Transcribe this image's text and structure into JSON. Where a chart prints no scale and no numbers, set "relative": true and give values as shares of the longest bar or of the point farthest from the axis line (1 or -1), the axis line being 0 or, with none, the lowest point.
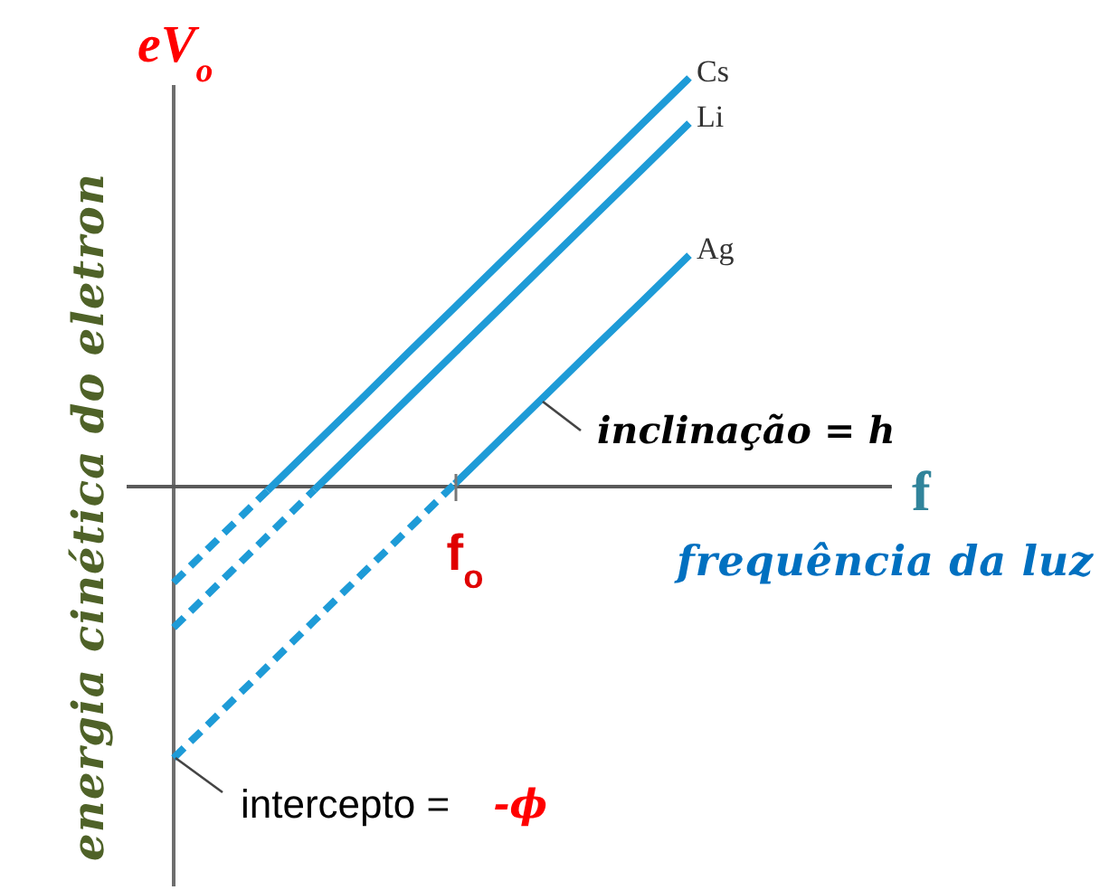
{
  "chart_data": {
    "type": "line",
    "relative": true,
    "xlabel": "frequência da luz",
    "ylabel": "energia cinética do eletron",
    "line_style": "solid",
    "categories": [
      null,
      null,
      null,
      null,
      null,
      null,
      null,
      null,
      null,
      null,
      null,
      null
    ],
    "series": [
      {
        "name": "Cs",
        "color": "#1e9bd7",
        "values": [
          null,
          null,
          -0.01,
          0.102,
          0.214,
          0.327,
          0.439,
          0.551,
          0.663,
          0.775,
          0.888,
          1
        ]
      },
      {
        "color": "#1e9bd7",
        "line_style": "dashed",
        "values": [
          -0.235,
          -0.122,
          -0.01,
          null,
          null,
          null,
          null,
          null,
          null,
          null,
          null,
          null
        ]
      },
      {
        "name": "Li",
        "color": "#1e9bd7",
        "values": [
          null,
          null,
          null,
          -0.008,
          0.104,
          0.216,
          0.328,
          0.44,
          0.553,
          0.665,
          0.777,
          0.889
        ]
      },
      {
        "color": "#1e9bd7",
        "line_style": "dashed",
        "values": [
          -0.345,
          -0.233,
          -0.121,
          -0.008,
          null,
          null,
          null,
          null,
          null,
          null,
          null,
          null
        ]
      },
      {
        "name": "Ag",
        "color": "#1e9bd7",
        "values": [
          null,
          null,
          null,
          null,
          null,
          null,
          0.007,
          0.119,
          0.231,
          0.343,
          0.454,
          0.566
        ]
      },
      {
        "color": "#1e9bd7",
        "line_style": "dashed",
        "values": [
          -0.664,
          -0.552,
          -0.44,
          -0.328,
          -0.216,
          -0.105,
          0.007,
          null,
          null,
          null,
          null,
          null
        ]
      }
    ],
    "annotations": [
      "eV$_{o}$",
      "f",
      "f$_{o}$",
      "inclinação = h",
      "intercepto = -ϕ"
    ]
  }
}
